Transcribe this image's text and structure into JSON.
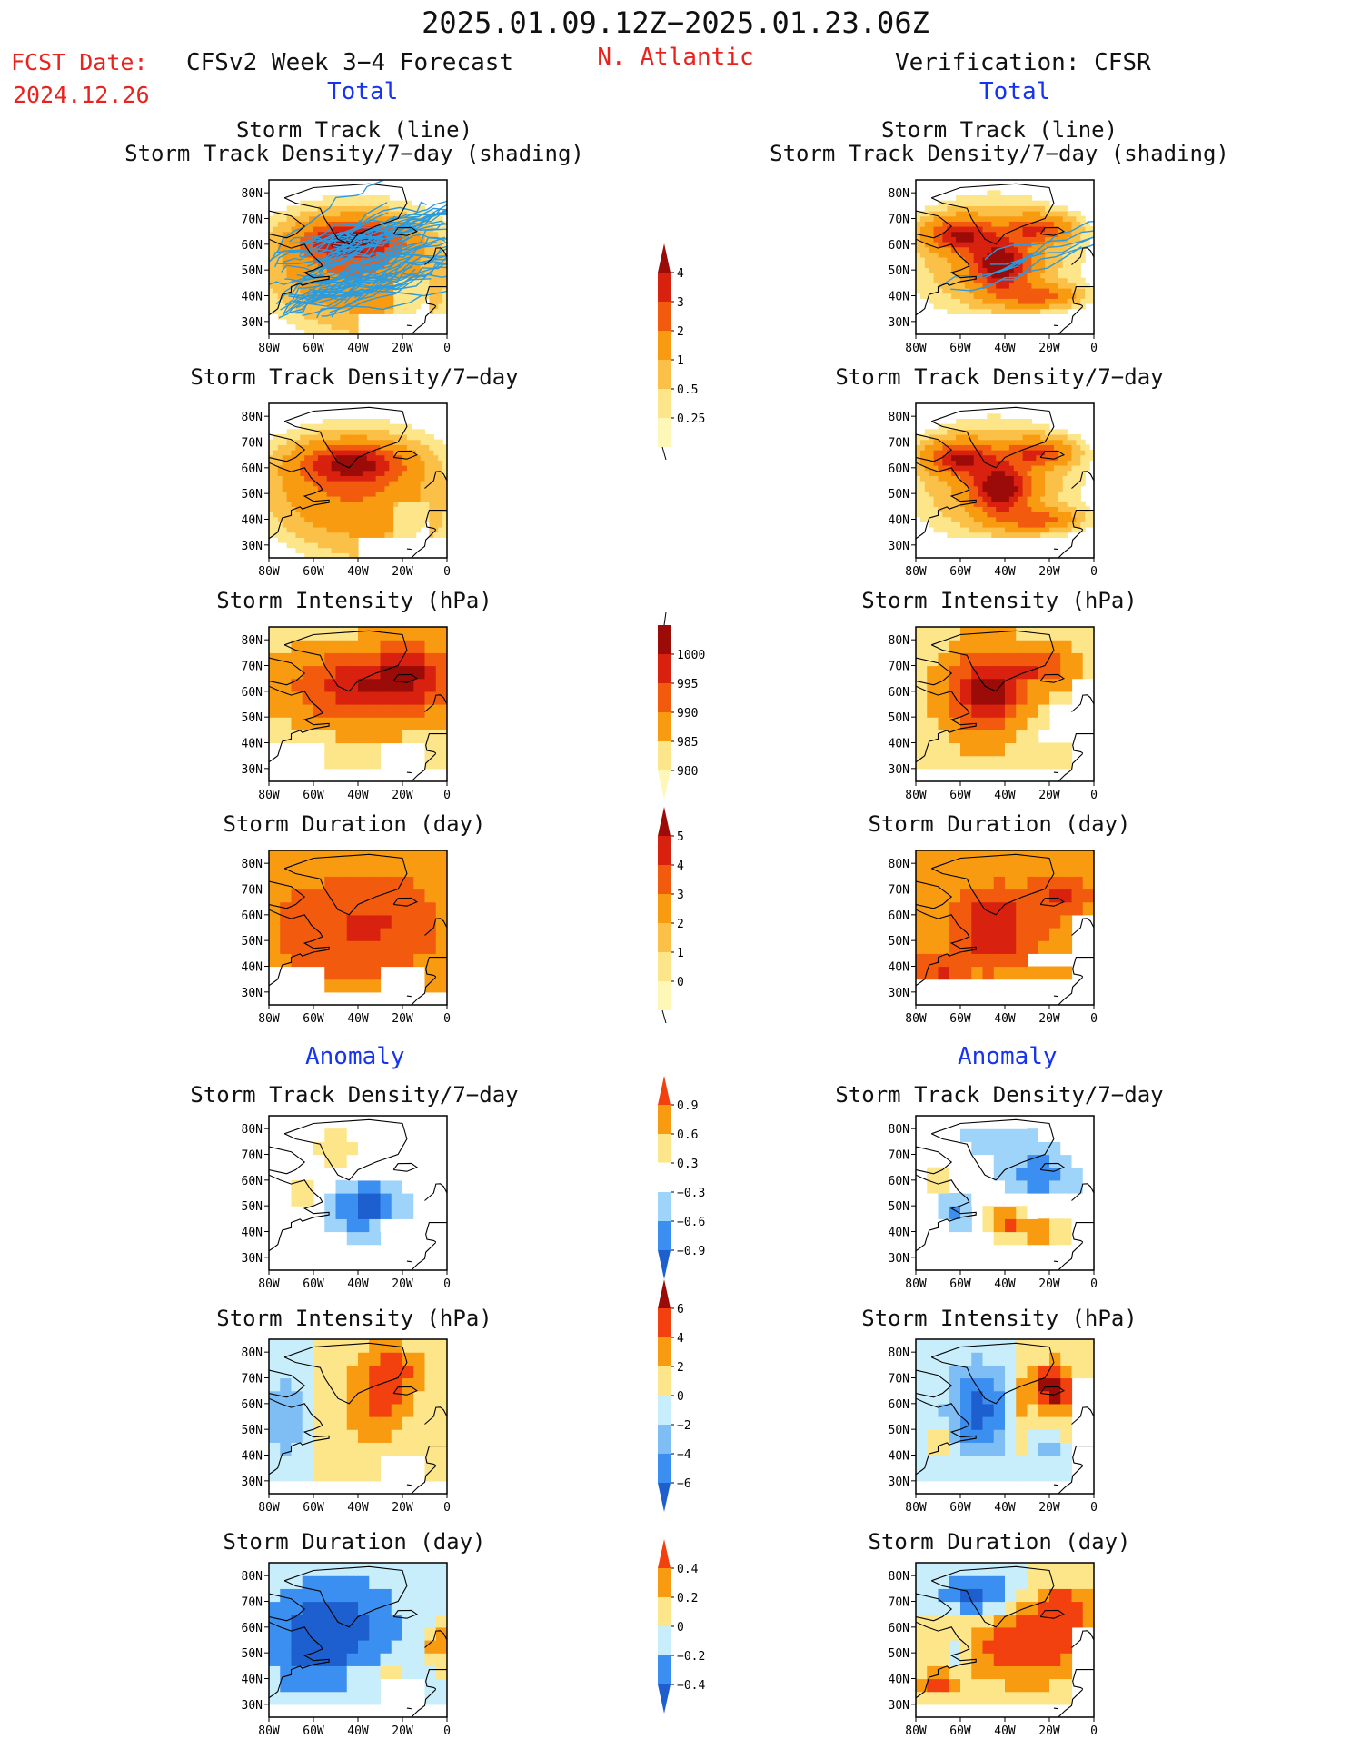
{
  "header": {
    "date_range": "2025.01.09.12Z−2025.01.23.06Z",
    "fcst_date_label": "FCST Date:",
    "fcst_date_value": "2024.12.26",
    "model_title": "CFSv2 Week 3−4 Forecast",
    "region": "N. Atlantic",
    "verification_title": "Verification: CFSR",
    "total_left": "Total",
    "total_right": "Total",
    "anomaly_left": "Anomaly",
    "anomaly_right": "Anomaly"
  },
  "panel_titles": {
    "storm_track_line": "Storm Track (line)",
    "storm_track_density_shading": "Storm Track Density/7−day (shading)",
    "storm_track_density": "Storm Track Density/7−day",
    "storm_intensity": "Storm Intensity (hPa)",
    "storm_duration": "Storm Duration (day)"
  },
  "colors": {
    "title_red": "#e8231e",
    "title_blue": "#1533f0",
    "track_line": "#2b9be0",
    "warm_scale": [
      "#fff7b8",
      "#fde589",
      "#fbc048",
      "#f89b10",
      "#f25a0e",
      "#d8210e",
      "#9b0b08"
    ],
    "intensity_scale": [
      "#9b0b08",
      "#d8210e",
      "#f25a0e",
      "#f89b10",
      "#fde589"
    ],
    "anomaly_scale": [
      "#1d5fcf",
      "#3b8ff0",
      "#9fd4fa",
      "#c9eefb",
      "#ffffff",
      "#fde589",
      "#f89b10",
      "#f2400e",
      "#9b0b08"
    ]
  },
  "chart_data": [
    {
      "type": "heatmap",
      "id": "fcst-total-track",
      "title": "Storm Track (line)",
      "subtitle": "Storm Track Density/7−day (shading)",
      "lon_ticks": [
        "80W",
        "60W",
        "40W",
        "20W",
        "0"
      ],
      "lat_ticks": [
        "30N",
        "40N",
        "50N",
        "60N",
        "70N",
        "80N"
      ],
      "xlim": [
        -80,
        0
      ],
      "ylim": [
        25,
        85
      ],
      "scale": "density",
      "overlay": "forecast_tracks",
      "field": "density_fcst"
    },
    {
      "type": "heatmap",
      "id": "verif-total-track",
      "title": "Storm Track (line)",
      "subtitle": "Storm Track Density/7−day (shading)",
      "lon_ticks": [
        "80W",
        "60W",
        "40W",
        "20W",
        "0"
      ],
      "lat_ticks": [
        "30N",
        "40N",
        "50N",
        "60N",
        "70N",
        "80N"
      ],
      "xlim": [
        -80,
        0
      ],
      "ylim": [
        25,
        85
      ],
      "scale": "density",
      "overlay": "verification_tracks",
      "field": "density_verif"
    },
    {
      "type": "heatmap",
      "id": "fcst-total-density",
      "title": "Storm Track Density/7−day",
      "lon_ticks": [
        "80W",
        "60W",
        "40W",
        "20W",
        "0"
      ],
      "lat_ticks": [
        "30N",
        "40N",
        "50N",
        "60N",
        "70N",
        "80N"
      ],
      "xlim": [
        -80,
        0
      ],
      "ylim": [
        25,
        85
      ],
      "scale": "density",
      "field": "density_fcst"
    },
    {
      "type": "heatmap",
      "id": "verif-total-density",
      "title": "Storm Track Density/7−day",
      "lon_ticks": [
        "80W",
        "60W",
        "40W",
        "20W",
        "0"
      ],
      "lat_ticks": [
        "30N",
        "40N",
        "50N",
        "60N",
        "70N",
        "80N"
      ],
      "xlim": [
        -80,
        0
      ],
      "ylim": [
        25,
        85
      ],
      "scale": "density",
      "field": "density_verif"
    },
    {
      "type": "heatmap",
      "id": "fcst-total-intensity",
      "title": "Storm Intensity (hPa)",
      "lon_ticks": [
        "80W",
        "60W",
        "40W",
        "20W",
        "0"
      ],
      "lat_ticks": [
        "30N",
        "40N",
        "50N",
        "60N",
        "70N",
        "80N"
      ],
      "xlim": [
        -80,
        0
      ],
      "ylim": [
        25,
        85
      ],
      "scale": "intensity",
      "field": "intensity_fcst"
    },
    {
      "type": "heatmap",
      "id": "verif-total-intensity",
      "title": "Storm Intensity (hPa)",
      "lon_ticks": [
        "80W",
        "60W",
        "40W",
        "20W",
        "0"
      ],
      "lat_ticks": [
        "30N",
        "40N",
        "50N",
        "60N",
        "70N",
        "80N"
      ],
      "xlim": [
        -80,
        0
      ],
      "ylim": [
        25,
        85
      ],
      "scale": "intensity",
      "field": "intensity_verif"
    },
    {
      "type": "heatmap",
      "id": "fcst-total-duration",
      "title": "Storm Duration (day)",
      "lon_ticks": [
        "80W",
        "60W",
        "40W",
        "20W",
        "0"
      ],
      "lat_ticks": [
        "30N",
        "40N",
        "50N",
        "60N",
        "70N",
        "80N"
      ],
      "xlim": [
        -80,
        0
      ],
      "ylim": [
        25,
        85
      ],
      "scale": "duration",
      "field": "duration_fcst"
    },
    {
      "type": "heatmap",
      "id": "verif-total-duration",
      "title": "Storm Duration (day)",
      "lon_ticks": [
        "80W",
        "60W",
        "40W",
        "20W",
        "0"
      ],
      "lat_ticks": [
        "30N",
        "40N",
        "50N",
        "60N",
        "70N",
        "80N"
      ],
      "xlim": [
        -80,
        0
      ],
      "ylim": [
        25,
        85
      ],
      "scale": "duration",
      "field": "duration_verif"
    },
    {
      "type": "heatmap",
      "id": "fcst-anom-density",
      "title": "Storm Track Density/7−day",
      "lon_ticks": [
        "80W",
        "60W",
        "40W",
        "20W",
        "0"
      ],
      "lat_ticks": [
        "30N",
        "40N",
        "50N",
        "60N",
        "70N",
        "80N"
      ],
      "xlim": [
        -80,
        0
      ],
      "ylim": [
        25,
        85
      ],
      "scale": "anom_density",
      "field": "anom_density_fcst"
    },
    {
      "type": "heatmap",
      "id": "verif-anom-density",
      "title": "Storm Track Density/7−day",
      "lon_ticks": [
        "80W",
        "60W",
        "40W",
        "20W",
        "0"
      ],
      "lat_ticks": [
        "30N",
        "40N",
        "50N",
        "60N",
        "70N",
        "80N"
      ],
      "xlim": [
        -80,
        0
      ],
      "ylim": [
        25,
        85
      ],
      "scale": "anom_density",
      "field": "anom_density_verif"
    },
    {
      "type": "heatmap",
      "id": "fcst-anom-intensity",
      "title": "Storm Intensity (hPa)",
      "lon_ticks": [
        "80W",
        "60W",
        "40W",
        "20W",
        "0"
      ],
      "lat_ticks": [
        "30N",
        "40N",
        "50N",
        "60N",
        "70N",
        "80N"
      ],
      "xlim": [
        -80,
        0
      ],
      "ylim": [
        25,
        85
      ],
      "scale": "anom_intensity",
      "field": "anom_intensity_fcst"
    },
    {
      "type": "heatmap",
      "id": "verif-anom-intensity",
      "title": "Storm Intensity (hPa)",
      "lon_ticks": [
        "80W",
        "60W",
        "40W",
        "20W",
        "0"
      ],
      "lat_ticks": [
        "30N",
        "40N",
        "50N",
        "60N",
        "70N",
        "80N"
      ],
      "xlim": [
        -80,
        0
      ],
      "ylim": [
        25,
        85
      ],
      "scale": "anom_intensity",
      "field": "anom_intensity_verif"
    },
    {
      "type": "heatmap",
      "id": "fcst-anom-duration",
      "title": "Storm Duration (day)",
      "lon_ticks": [
        "80W",
        "60W",
        "40W",
        "20W",
        "0"
      ],
      "lat_ticks": [
        "30N",
        "40N",
        "50N",
        "60N",
        "70N",
        "80N"
      ],
      "xlim": [
        -80,
        0
      ],
      "ylim": [
        25,
        85
      ],
      "scale": "anom_duration",
      "field": "anom_duration_fcst"
    },
    {
      "type": "heatmap",
      "id": "verif-anom-duration",
      "title": "Storm Duration (day)",
      "lon_ticks": [
        "80W",
        "60W",
        "40W",
        "20W",
        "0"
      ],
      "lat_ticks": [
        "30N",
        "40N",
        "50N",
        "60N",
        "70N",
        "80N"
      ],
      "xlim": [
        -80,
        0
      ],
      "ylim": [
        25,
        85
      ],
      "scale": "anom_duration",
      "field": "anom_duration_verif"
    }
  ],
  "colorbars": [
    {
      "id": "cb-density",
      "labels": [
        "4",
        "3",
        "2",
        "1",
        "0.5",
        "0.25"
      ],
      "direction": "max"
    },
    {
      "id": "cb-intensity",
      "labels": [
        "1000",
        "995",
        "990",
        "985",
        "980"
      ],
      "direction": "min"
    },
    {
      "id": "cb-duration",
      "labels": [
        "5",
        "4",
        "3",
        "2",
        "1",
        "0"
      ],
      "direction": "max"
    },
    {
      "id": "cb-anom-density",
      "labels": [
        "0.9",
        "0.6",
        "0.3",
        "−0.3",
        "−0.6",
        "−0.9"
      ],
      "direction": "both"
    },
    {
      "id": "cb-anom-intensity",
      "labels": [
        "6",
        "4",
        "2",
        "0",
        "−2",
        "−4",
        "−6"
      ],
      "direction": "both"
    },
    {
      "id": "cb-anom-duration",
      "labels": [
        "0.4",
        "0.2",
        "0",
        "−0.2",
        "−0.4"
      ],
      "direction": "both"
    }
  ]
}
